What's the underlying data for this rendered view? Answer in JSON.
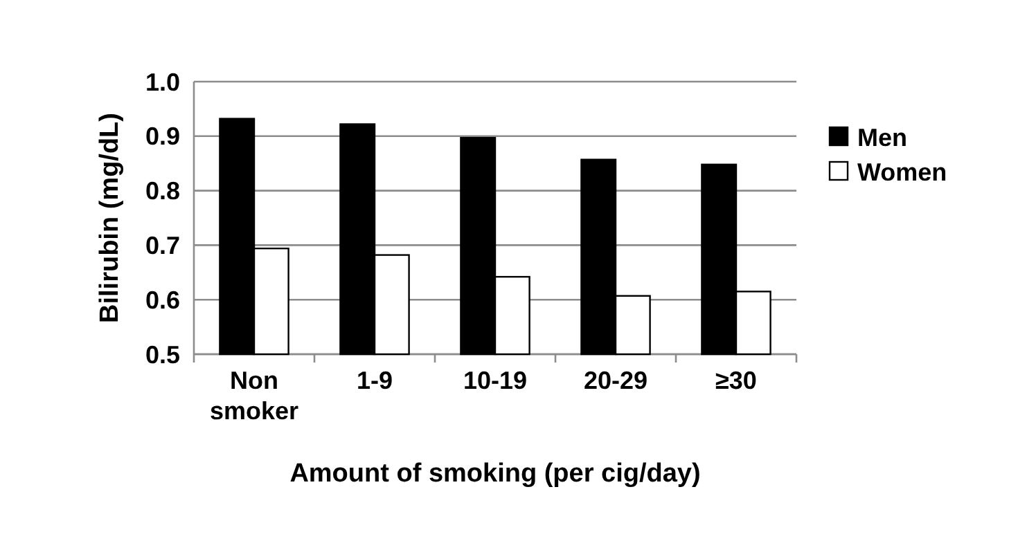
{
  "chart_data": {
    "type": "bar",
    "xlabel": "Amount of smoking (per cig/day)",
    "ylabel": "Bilirubin (mg/dL)",
    "categories": [
      "Non smoker",
      "1-9",
      "10-19",
      "20-29",
      "≥30"
    ],
    "series": [
      {
        "name": "Men",
        "color": "#000000",
        "values": [
          0.932,
          0.922,
          0.897,
          0.857,
          0.848
        ]
      },
      {
        "name": "Women",
        "color": "#ffffff",
        "values": [
          0.694,
          0.682,
          0.642,
          0.607,
          0.615
        ]
      }
    ],
    "ylim": [
      0.5,
      1.0
    ],
    "yticks": [
      {
        "value": 0.5,
        "label": "0.5"
      },
      {
        "value": 0.6,
        "label": "0.6"
      },
      {
        "value": 0.7,
        "label": "0.7"
      },
      {
        "value": 0.8,
        "label": "0.8"
      },
      {
        "value": 0.9,
        "label": "0.9"
      },
      {
        "value": 1.0,
        "label": "1.0"
      }
    ],
    "grid": "y",
    "legend": "right"
  }
}
